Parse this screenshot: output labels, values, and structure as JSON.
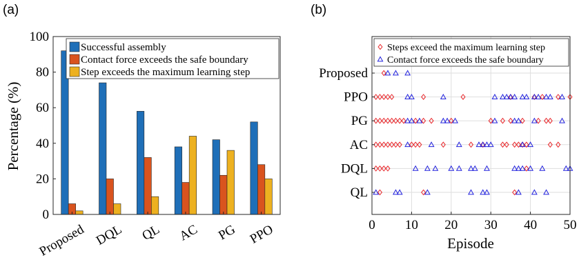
{
  "chart_data": [
    {
      "panel_label": "(a)",
      "type": "bar",
      "categories": [
        "Proposed",
        "DQL",
        "QL",
        "AC",
        "PG",
        "PPO"
      ],
      "series": [
        {
          "name": "Successful assembly",
          "values": [
            92,
            74,
            58,
            38,
            42,
            52
          ],
          "color": "#1f6fb8"
        },
        {
          "name": "Contact force exceeds the safe boundary",
          "values": [
            6,
            20,
            32,
            18,
            22,
            28
          ],
          "color": "#d9531e"
        },
        {
          "name": "Step exceeds the maximum learning step",
          "values": [
            2,
            6,
            10,
            44,
            36,
            20
          ],
          "color": "#edb120"
        }
      ],
      "ylabel": "Percentage (%)",
      "ylim": [
        0,
        100
      ],
      "yticks": [
        0,
        20,
        40,
        60,
        80,
        100
      ],
      "legend_position": "top-right",
      "grid": false
    },
    {
      "panel_label": "(b)",
      "type": "scatter",
      "categories": [
        "Proposed",
        "PPO",
        "PG",
        "AC",
        "DQL",
        "QL"
      ],
      "xlabel": "Episode",
      "xlim": [
        0,
        50
      ],
      "xticks": [
        0,
        10,
        20,
        30,
        40,
        50
      ],
      "grid": true,
      "legend_position": "top",
      "series": [
        {
          "name": "Steps exceed the maximum learning step",
          "marker": "diamond",
          "color": "#e8262a",
          "points": {
            "Proposed": [
              3
            ],
            "PPO": [
              1,
              2,
              3,
              4,
              5,
              13,
              23,
              35,
              41,
              43,
              47,
              50
            ],
            "PG": [
              1,
              2,
              3,
              4,
              5,
              6,
              7,
              8,
              11,
              13,
              15,
              20,
              30,
              33,
              35,
              38,
              42,
              44,
              45
            ],
            "AC": [
              1,
              2,
              3,
              4,
              5,
              6,
              7,
              10,
              11,
              12,
              18,
              25,
              28,
              33,
              34,
              36,
              37,
              38,
              39,
              45,
              47
            ],
            "DQL": [
              1,
              2,
              3,
              4,
              39
            ],
            "QL": [
              2,
              13,
              36
            ]
          }
        },
        {
          "name": "Contact force exceeds the safe boundary",
          "marker": "triangle",
          "color": "#2222dd",
          "points": {
            "Proposed": [
              4,
              6,
              9
            ],
            "PPO": [
              9,
              10,
              18,
              31,
              33,
              34,
              35,
              36,
              38,
              39,
              41,
              42,
              44,
              45,
              48
            ],
            "PG": [
              9,
              10,
              12,
              18,
              19,
              21,
              31,
              36,
              37,
              41,
              48
            ],
            "AC": [
              9,
              15,
              22,
              27,
              28,
              29,
              30,
              38,
              40
            ],
            "DQL": [
              11,
              14,
              16,
              20,
              22,
              25,
              26,
              29,
              36,
              37,
              38,
              40,
              43,
              49,
              50
            ],
            "QL": [
              1,
              6,
              7,
              14,
              25,
              28,
              29,
              37,
              41,
              44
            ]
          }
        }
      ]
    }
  ]
}
